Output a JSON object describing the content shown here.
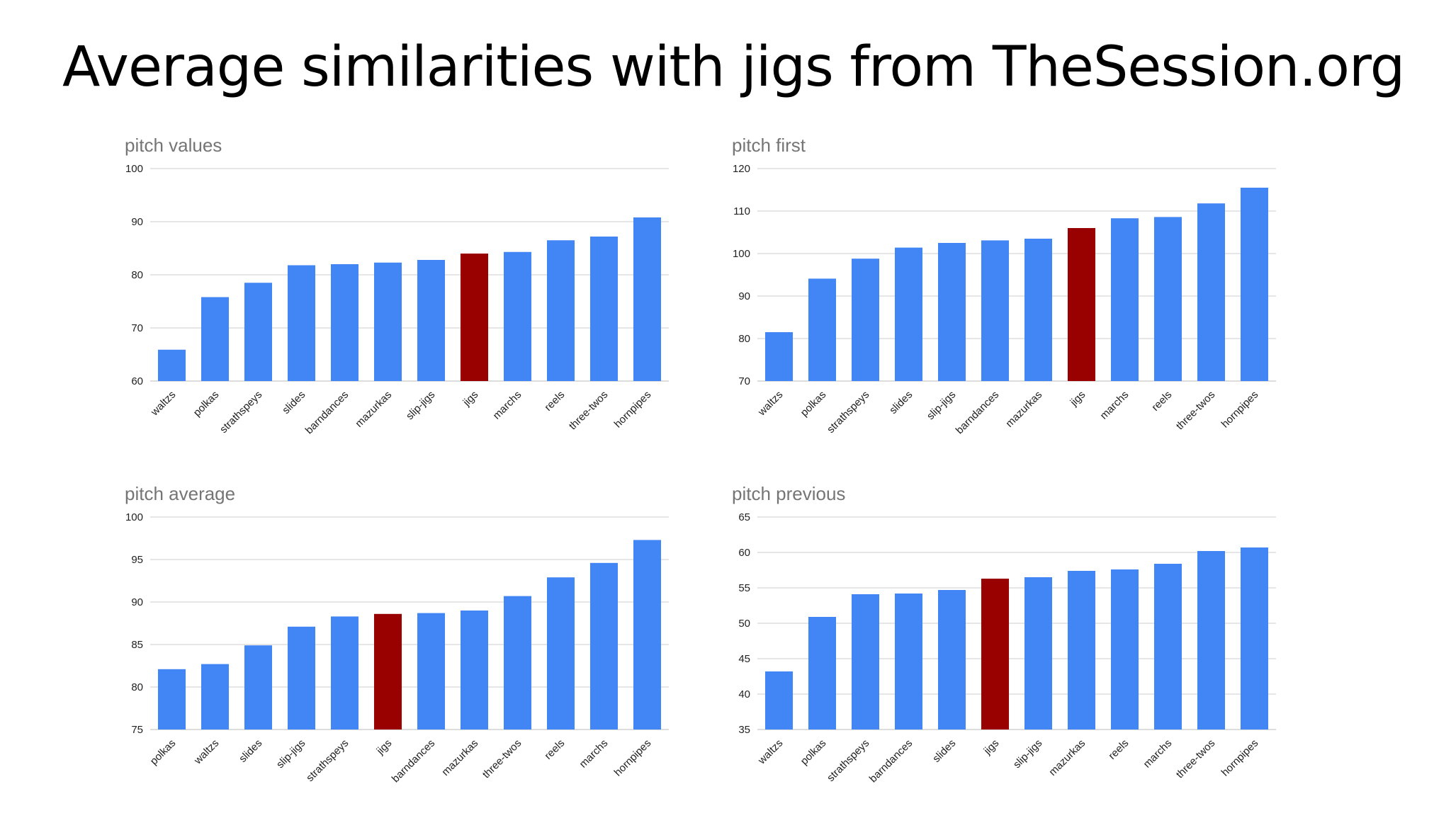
{
  "slide": {
    "title": "Average similarities with jigs from TheSession.org"
  },
  "colors": {
    "bar": "#4285f4",
    "highlight": "#990000",
    "grid": "#cccccc",
    "tick_text": "#222222",
    "chart_title": "#757575"
  },
  "chart_data": [
    {
      "type": "bar",
      "title": "pitch values",
      "xlabel": "",
      "ylabel": "",
      "categories": [
        "waltzs",
        "polkas",
        "strathspeys",
        "slides",
        "barndances",
        "mazurkas",
        "slip-jigs",
        "jigs",
        "marchs",
        "reels",
        "three-twos",
        "hornpipes"
      ],
      "values": [
        65.9,
        75.8,
        78.5,
        81.8,
        82.0,
        82.3,
        82.8,
        84.0,
        84.3,
        86.5,
        87.2,
        90.8
      ],
      "highlight": "jigs",
      "ylim": [
        60,
        100
      ],
      "yticks": [
        60,
        70,
        80,
        90,
        100
      ],
      "grid": true
    },
    {
      "type": "bar",
      "title": "pitch first",
      "xlabel": "",
      "ylabel": "",
      "categories": [
        "waltzs",
        "polkas",
        "strathspeys",
        "slides",
        "slip-jigs",
        "barndances",
        "mazurkas",
        "jigs",
        "marchs",
        "reels",
        "three-twos",
        "hornpipes"
      ],
      "values": [
        81.5,
        94.1,
        98.8,
        101.4,
        102.5,
        103.1,
        103.5,
        106.0,
        108.3,
        108.6,
        111.8,
        115.5
      ],
      "highlight": "jigs",
      "ylim": [
        70,
        120
      ],
      "yticks": [
        70,
        80,
        90,
        100,
        110,
        120
      ],
      "grid": true
    },
    {
      "type": "bar",
      "title": "pitch average",
      "xlabel": "",
      "ylabel": "",
      "categories": [
        "polkas",
        "waltzs",
        "slides",
        "slip-jigs",
        "strathspeys",
        "jigs",
        "barndances",
        "mazurkas",
        "three-twos",
        "reels",
        "marchs",
        "hornpipes"
      ],
      "values": [
        82.1,
        82.7,
        84.9,
        87.1,
        88.3,
        88.6,
        88.7,
        89.0,
        90.7,
        92.9,
        94.6,
        97.3
      ],
      "highlight": "jigs",
      "ylim": [
        75,
        100
      ],
      "yticks": [
        75,
        80,
        85,
        90,
        95,
        100
      ],
      "grid": true
    },
    {
      "type": "bar",
      "title": "pitch previous",
      "xlabel": "",
      "ylabel": "",
      "categories": [
        "waltzs",
        "polkas",
        "strathspeys",
        "barndances",
        "slides",
        "jigs",
        "slip-jigs",
        "mazurkas",
        "reels",
        "marchs",
        "three-twos",
        "hornpipes"
      ],
      "values": [
        43.2,
        50.9,
        54.1,
        54.2,
        54.7,
        56.3,
        56.5,
        57.4,
        57.6,
        58.4,
        60.2,
        60.7
      ],
      "highlight": "jigs",
      "ylim": [
        35,
        65
      ],
      "yticks": [
        35,
        40,
        45,
        50,
        55,
        60,
        65
      ],
      "grid": true
    }
  ]
}
